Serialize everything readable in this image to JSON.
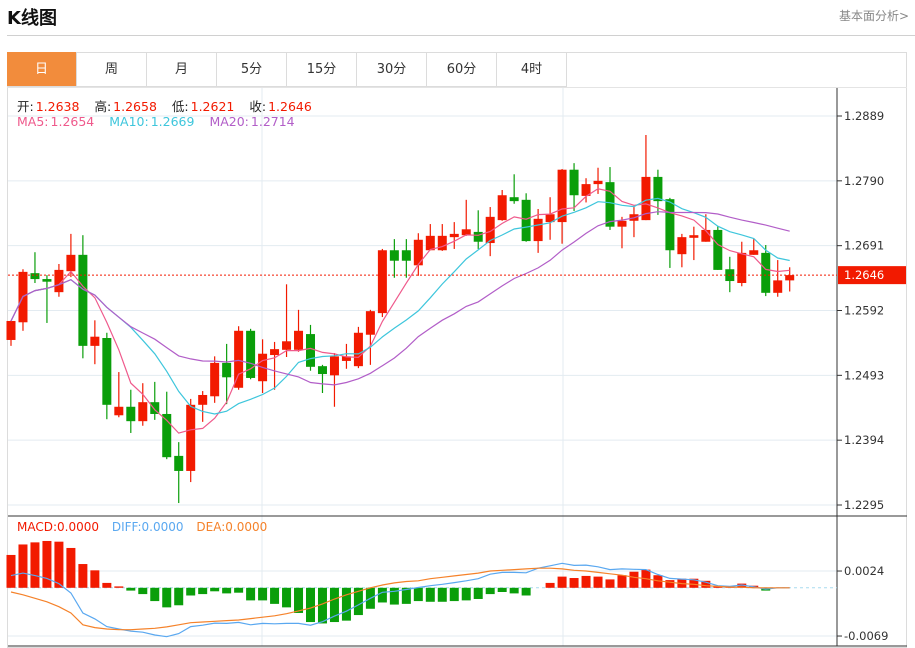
{
  "header": {
    "title": "K线图",
    "link": "基本面分析>"
  },
  "tabs": [
    {
      "label": "日",
      "active": true
    },
    {
      "label": "周"
    },
    {
      "label": "月"
    },
    {
      "label": "5分"
    },
    {
      "label": "15分"
    },
    {
      "label": "30分"
    },
    {
      "label": "60分"
    },
    {
      "label": "4时"
    }
  ],
  "ohlc_info": {
    "open_label": "开:",
    "open": "1.2638",
    "high_label": "高:",
    "high": "1.2658",
    "low_label": "低:",
    "low": "1.2621",
    "close_label": "收:",
    "close": "1.2646"
  },
  "ma_info": {
    "ma5_label": "MA5:",
    "ma5": "1.2654",
    "ma10_label": "MA10:",
    "ma10": "1.2669",
    "ma20_label": "MA20:",
    "ma20": "1.2714"
  },
  "macd_info": {
    "macd_label": "MACD:",
    "macd": "0.0000",
    "diff_label": "DIFF:",
    "diff": "0.0000",
    "dea_label": "DEA:",
    "dea": "0.0000"
  },
  "colors": {
    "up": "#f21a00",
    "down": "#0a9e0a",
    "active_tab": "#f28c3c",
    "ma5": "#ef5a8c",
    "ma10": "#3ec6dc",
    "ma20": "#b25ec8",
    "diff": "#5aa8f0",
    "dea": "#f5822a"
  },
  "chart_data": [
    {
      "type": "candlestick",
      "price_ticks": [
        "1.2889",
        "1.2790",
        "1.2691",
        "1.2592",
        "1.2493",
        "1.2394",
        "1.2295"
      ],
      "ylim": [
        1.2295,
        1.2889
      ],
      "last_price": "1.2646",
      "grid": true,
      "ma_periods": [
        5,
        10,
        20
      ],
      "candles_ochl_order": "open,close,low,high",
      "candles": [
        [
          1.2547,
          1.2576,
          1.2538,
          1.2577
        ],
        [
          1.2574,
          1.2651,
          1.2561,
          1.2655
        ],
        [
          1.2649,
          1.264,
          1.2634,
          1.2681
        ],
        [
          1.264,
          1.2636,
          1.2573,
          1.2646
        ],
        [
          1.262,
          1.2654,
          1.2613,
          1.2663
        ],
        [
          1.2652,
          1.2677,
          1.2643,
          1.2709
        ],
        [
          1.2677,
          1.2538,
          1.2519,
          1.2707
        ],
        [
          1.2538,
          1.2552,
          1.251,
          1.2577
        ],
        [
          1.255,
          1.2448,
          1.2426,
          1.2558
        ],
        [
          1.2432,
          1.2445,
          1.2429,
          1.2498
        ],
        [
          1.2445,
          1.2423,
          1.2405,
          1.2471
        ],
        [
          1.2423,
          1.2452,
          1.2416,
          1.2481
        ],
        [
          1.2452,
          1.2434,
          1.2425,
          1.2483
        ],
        [
          1.2434,
          1.2368,
          1.2365,
          1.2468
        ],
        [
          1.237,
          1.2347,
          1.2298,
          1.2391
        ],
        [
          1.2347,
          1.2448,
          1.233,
          1.2457
        ],
        [
          1.2448,
          1.2463,
          1.2422,
          1.2469
        ],
        [
          1.2461,
          1.2512,
          1.2451,
          1.2522
        ],
        [
          1.2512,
          1.249,
          1.2449,
          1.2541
        ],
        [
          1.2474,
          1.2561,
          1.2471,
          1.2568
        ],
        [
          1.2561,
          1.2489,
          1.2487,
          1.2564
        ],
        [
          1.2484,
          1.2526,
          1.2466,
          1.2548
        ],
        [
          1.2524,
          1.2533,
          1.2471,
          1.2544
        ],
        [
          1.2532,
          1.2545,
          1.2521,
          1.2632
        ],
        [
          1.2532,
          1.2561,
          1.2529,
          1.2593
        ],
        [
          1.2556,
          1.2506,
          1.25,
          1.257
        ],
        [
          1.2507,
          1.2495,
          1.2466,
          1.2509
        ],
        [
          1.2493,
          1.2522,
          1.2445,
          1.2527
        ],
        [
          1.2515,
          1.2522,
          1.2503,
          1.2541
        ],
        [
          1.2507,
          1.2558,
          1.2504,
          1.2567
        ],
        [
          1.2555,
          1.2591,
          1.2509,
          1.2593
        ],
        [
          1.2588,
          1.2684,
          1.2582,
          1.2686
        ],
        [
          1.2684,
          1.2668,
          1.2642,
          1.2701
        ],
        [
          1.2684,
          1.2668,
          1.2642,
          1.2701
        ],
        [
          1.2661,
          1.27,
          1.2645,
          1.271
        ],
        [
          1.2684,
          1.2706,
          1.2684,
          1.2724
        ],
        [
          1.2684,
          1.2706,
          1.2683,
          1.2724
        ],
        [
          1.2704,
          1.2709,
          1.2686,
          1.2727
        ],
        [
          1.2707,
          1.2716,
          1.2706,
          1.2761
        ],
        [
          1.2712,
          1.2697,
          1.2686,
          1.2745
        ],
        [
          1.2695,
          1.2735,
          1.2675,
          1.275
        ],
        [
          1.273,
          1.2768,
          1.2729,
          1.2776
        ],
        [
          1.2765,
          1.2759,
          1.2755,
          1.28
        ],
        [
          1.2761,
          1.2698,
          1.2697,
          1.2771
        ],
        [
          1.2698,
          1.2732,
          1.268,
          1.2747
        ],
        [
          1.2727,
          1.2739,
          1.27,
          1.2765
        ],
        [
          1.2727,
          1.2807,
          1.2694,
          1.2808
        ],
        [
          1.2807,
          1.2768,
          1.2744,
          1.2817
        ],
        [
          1.2767,
          1.2785,
          1.2757,
          1.2794
        ],
        [
          1.2785,
          1.279,
          1.277,
          1.281
        ],
        [
          1.2788,
          1.272,
          1.2715,
          1.2811
        ],
        [
          1.272,
          1.2729,
          1.2687,
          1.2735
        ],
        [
          1.2729,
          1.2739,
          1.2704,
          1.2752
        ],
        [
          1.273,
          1.2796,
          1.273,
          1.286
        ],
        [
          1.2796,
          1.2759,
          1.2738,
          1.2807
        ],
        [
          1.2762,
          1.2684,
          1.2657,
          1.2764
        ],
        [
          1.2678,
          1.2704,
          1.2658,
          1.2709
        ],
        [
          1.2703,
          1.2707,
          1.2669,
          1.272
        ],
        [
          1.2697,
          1.2715,
          1.2697,
          1.2739
        ],
        [
          1.2715,
          1.2654,
          1.2654,
          1.2721
        ],
        [
          1.2655,
          1.2637,
          1.262,
          1.2674
        ],
        [
          1.2634,
          1.268,
          1.2629,
          1.2697
        ],
        [
          1.2677,
          1.2684,
          1.2677,
          1.2701
        ],
        [
          1.268,
          1.2619,
          1.2614,
          1.2692
        ],
        [
          1.2619,
          1.2638,
          1.2613,
          1.2669
        ],
        [
          1.2638,
          1.2646,
          1.2621,
          1.2658
        ]
      ]
    },
    {
      "type": "bar+line",
      "name": "MACD",
      "ticks": [
        "0.0024",
        "-0.0069"
      ],
      "ylim": [
        -0.0069,
        0.0024
      ],
      "macd_hist": [
        0.0047,
        0.0062,
        0.0065,
        0.0067,
        0.0066,
        0.0057,
        0.0034,
        0.0025,
        0.0007,
        0.0002,
        -0.0004,
        -0.0009,
        -0.0019,
        -0.0028,
        -0.0025,
        -0.0011,
        -0.0009,
        -0.0005,
        -0.0008,
        -0.0007,
        -0.0018,
        -0.0018,
        -0.0023,
        -0.0028,
        -0.0036,
        -0.0049,
        -0.0051,
        -0.0049,
        -0.0047,
        -0.0039,
        -0.003,
        -0.0021,
        -0.0024,
        -0.0023,
        -0.0019,
        -0.002,
        -0.002,
        -0.0019,
        -0.0018,
        -0.0016,
        -0.0009,
        -0.0006,
        -0.0008,
        -0.0011,
        0.0,
        0.0007,
        0.0016,
        0.0014,
        0.0017,
        0.0016,
        0.0012,
        0.0018,
        0.0023,
        0.0026,
        0.0018,
        0.0011,
        0.0013,
        0.0013,
        0.001,
        0.0002,
        0.0002,
        0.0006,
        0.0003,
        -0.0004,
        0.0,
        0.0
      ],
      "dea": [
        -0.0006,
        -0.001,
        -0.0015,
        -0.002,
        -0.0027,
        -0.0036,
        -0.0053,
        -0.0057,
        -0.0059,
        -0.006,
        -0.006,
        -0.0059,
        -0.0058,
        -0.0056,
        -0.0053,
        -0.005,
        -0.0049,
        -0.0048,
        -0.0047,
        -0.0046,
        -0.0044,
        -0.0042,
        -0.004,
        -0.0037,
        -0.0033,
        -0.0029,
        -0.0023,
        -0.0016,
        -0.001,
        -0.0005,
        0.0,
        0.0004,
        0.0007,
        0.0009,
        0.001,
        0.0013,
        0.0015,
        0.0017,
        0.0019,
        0.0021,
        0.0024,
        0.0025,
        0.0026,
        0.0027,
        0.0028,
        0.0028,
        0.0027,
        0.0025,
        0.0024,
        0.0022,
        0.002,
        0.0018,
        0.0015,
        0.0013,
        0.001,
        0.0008,
        0.0006,
        0.0005,
        0.0003,
        0.0002,
        0.0001,
        0.0001,
        0.0,
        0.0,
        0.0,
        0.0
      ]
    }
  ]
}
